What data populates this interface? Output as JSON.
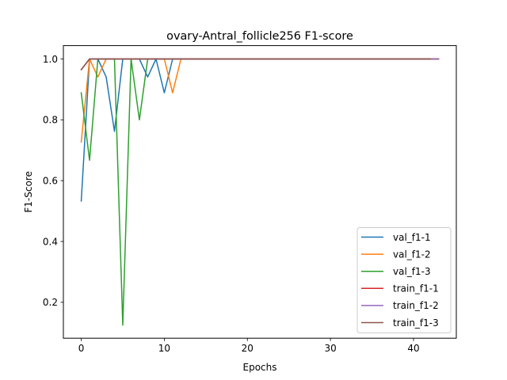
{
  "chart_data": {
    "type": "line",
    "title": "ovary-Antral_follicle256 F1-score",
    "xlabel": "Epochs",
    "ylabel": "F1-Score",
    "xlim": [
      -2.15,
      45.15
    ],
    "ylim": [
      0.082,
      1.044
    ],
    "xticks": [
      0,
      10,
      20,
      30,
      40
    ],
    "xtick_labels": [
      "0",
      "10",
      "20",
      "30",
      "40"
    ],
    "yticks": [
      0.2,
      0.4,
      0.6,
      0.8,
      1.0
    ],
    "ytick_labels": [
      "0.2",
      "0.4",
      "0.6",
      "0.8",
      "1.0"
    ],
    "grid": false,
    "legend_position": "lower-right",
    "series": [
      {
        "name": "val_f1-1",
        "color": "#1f77b4",
        "x": [
          0,
          1,
          2,
          3,
          4,
          5,
          6,
          7,
          8,
          9,
          10,
          11,
          12,
          13,
          14,
          15,
          16,
          17,
          18,
          19,
          20,
          21,
          22,
          23,
          24,
          25,
          26,
          27,
          28,
          29,
          30,
          31,
          32,
          33,
          34,
          35,
          36,
          37,
          38,
          39,
          40,
          41,
          42,
          43
        ],
        "y": [
          0.533,
          1.0,
          1.0,
          0.941,
          0.762,
          1.0,
          1.0,
          1.0,
          0.941,
          1.0,
          0.889,
          1.0,
          1.0,
          1.0,
          1.0,
          1.0,
          1.0,
          1.0,
          1.0,
          1.0,
          1.0,
          1.0,
          1.0,
          1.0,
          1.0,
          1.0,
          1.0,
          1.0,
          1.0,
          1.0,
          1.0,
          1.0,
          1.0,
          1.0,
          1.0,
          1.0,
          1.0,
          1.0,
          1.0,
          1.0,
          1.0,
          1.0,
          1.0,
          1.0
        ]
      },
      {
        "name": "val_f1-2",
        "color": "#ff7f0e",
        "x": [
          0,
          1,
          2,
          3,
          4,
          5,
          6,
          7,
          8,
          9,
          10,
          11,
          12,
          13,
          14,
          15,
          16,
          17,
          18,
          19,
          20,
          21,
          22,
          23,
          24,
          25,
          26,
          27,
          28,
          29,
          30,
          31,
          32,
          33,
          34,
          35,
          36,
          37,
          38,
          39,
          40,
          41,
          42,
          43
        ],
        "y": [
          0.727,
          1.0,
          0.941,
          1.0,
          1.0,
          1.0,
          1.0,
          1.0,
          1.0,
          1.0,
          1.0,
          0.889,
          1.0,
          1.0,
          1.0,
          1.0,
          1.0,
          1.0,
          1.0,
          1.0,
          1.0,
          1.0,
          1.0,
          1.0,
          1.0,
          1.0,
          1.0,
          1.0,
          1.0,
          1.0,
          1.0,
          1.0,
          1.0,
          1.0,
          1.0,
          1.0,
          1.0,
          1.0,
          1.0,
          1.0,
          1.0,
          1.0,
          1.0,
          1.0
        ]
      },
      {
        "name": "val_f1-3",
        "color": "#2ca02c",
        "x": [
          0,
          1,
          2,
          3,
          4,
          5,
          6,
          7,
          8,
          9,
          10,
          11,
          12,
          13,
          14,
          15,
          16,
          17,
          18,
          19,
          20,
          21,
          22,
          23,
          24,
          25,
          26,
          27,
          28,
          29,
          30,
          31,
          32,
          33,
          34,
          35,
          36,
          37,
          38,
          39,
          40,
          41,
          42,
          43
        ],
        "y": [
          0.889,
          0.667,
          1.0,
          1.0,
          1.0,
          0.125,
          1.0,
          0.8,
          1.0,
          1.0,
          1.0,
          1.0,
          1.0,
          1.0,
          1.0,
          1.0,
          1.0,
          1.0,
          1.0,
          1.0,
          1.0,
          1.0,
          1.0,
          1.0,
          1.0,
          1.0,
          1.0,
          1.0,
          1.0,
          1.0,
          1.0,
          1.0,
          1.0,
          1.0,
          1.0,
          1.0,
          1.0,
          1.0,
          1.0,
          1.0,
          1.0,
          1.0,
          1.0,
          1.0
        ]
      },
      {
        "name": "train_f1-1",
        "color": "#d62728",
        "x": [
          0,
          1,
          2,
          3,
          4,
          5,
          6,
          7,
          8,
          9,
          10,
          11,
          12,
          13,
          14,
          15,
          16,
          17,
          18,
          19,
          20,
          21,
          22,
          23,
          24,
          25,
          26,
          27,
          28,
          29,
          30,
          31,
          32,
          33,
          34,
          35,
          36,
          37,
          38,
          39,
          40,
          41,
          42,
          43
        ],
        "y": [
          0.965,
          1.0,
          1.0,
          1.0,
          1.0,
          1.0,
          1.0,
          1.0,
          1.0,
          1.0,
          1.0,
          1.0,
          1.0,
          1.0,
          1.0,
          1.0,
          1.0,
          1.0,
          1.0,
          1.0,
          1.0,
          1.0,
          1.0,
          1.0,
          1.0,
          1.0,
          1.0,
          1.0,
          1.0,
          1.0,
          1.0,
          1.0,
          1.0,
          1.0,
          1.0,
          1.0,
          1.0,
          1.0,
          1.0,
          1.0,
          1.0,
          1.0,
          1.0,
          1.0
        ]
      },
      {
        "name": "train_f1-2",
        "color": "#9467bd",
        "x": [
          0,
          1,
          2,
          3,
          4,
          5,
          6,
          7,
          8,
          9,
          10,
          11,
          12,
          13,
          14,
          15,
          16,
          17,
          18,
          19,
          20,
          21,
          22,
          23,
          24,
          25,
          26,
          27,
          28,
          29,
          30,
          31,
          32,
          33,
          34,
          35,
          36,
          37,
          38,
          39,
          40,
          41,
          42,
          43
        ],
        "y": [
          0.965,
          1.0,
          1.0,
          1.0,
          1.0,
          1.0,
          1.0,
          1.0,
          1.0,
          1.0,
          1.0,
          1.0,
          1.0,
          1.0,
          1.0,
          1.0,
          1.0,
          1.0,
          1.0,
          1.0,
          1.0,
          1.0,
          1.0,
          1.0,
          1.0,
          1.0,
          1.0,
          1.0,
          1.0,
          1.0,
          1.0,
          1.0,
          1.0,
          1.0,
          1.0,
          1.0,
          1.0,
          1.0,
          1.0,
          1.0,
          1.0,
          1.0,
          1.0,
          1.0
        ]
      },
      {
        "name": "train_f1-3",
        "color": "#8c564b",
        "x": [
          0,
          1,
          2,
          3,
          4,
          5,
          6,
          7,
          8,
          9,
          10,
          11,
          12,
          13,
          14,
          15,
          16,
          17,
          18,
          19,
          20,
          21,
          22,
          23,
          24,
          25,
          26,
          27,
          28,
          29,
          30,
          31,
          32,
          33,
          34,
          35,
          36,
          37,
          38,
          39,
          40,
          41,
          42
        ],
        "y": [
          0.965,
          1.0,
          1.0,
          1.0,
          1.0,
          1.0,
          1.0,
          1.0,
          1.0,
          1.0,
          1.0,
          1.0,
          1.0,
          1.0,
          1.0,
          1.0,
          1.0,
          1.0,
          1.0,
          1.0,
          1.0,
          1.0,
          1.0,
          1.0,
          1.0,
          1.0,
          1.0,
          1.0,
          1.0,
          1.0,
          1.0,
          1.0,
          1.0,
          1.0,
          1.0,
          1.0,
          1.0,
          1.0,
          1.0,
          1.0,
          1.0,
          1.0,
          1.0
        ]
      }
    ]
  }
}
